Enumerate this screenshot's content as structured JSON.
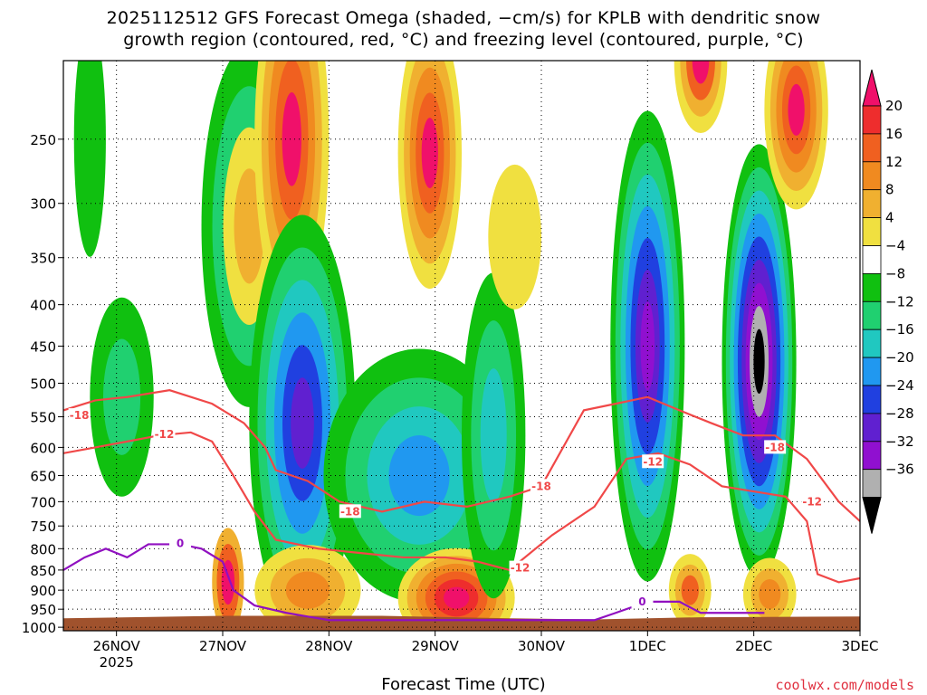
{
  "chart_data": {
    "type": "heatmap",
    "title": "2025112512 GFS Forecast Omega (shaded, −cm/s) for KPLB with dendritic snow",
    "subtitle": "growth region (contoured, red, °C) and freezing level (contoured, purple, °C)",
    "xlabel": "Forecast Time (UTC)",
    "x_ticks": [
      {
        "label": "26NOV",
        "sub": "2025",
        "t": 0.5
      },
      {
        "label": "27NOV",
        "sub": "",
        "t": 1.5
      },
      {
        "label": "28NOV",
        "sub": "",
        "t": 2.5
      },
      {
        "label": "29NOV",
        "sub": "",
        "t": 3.5
      },
      {
        "label": "30NOV",
        "sub": "",
        "t": 4.5
      },
      {
        "label": "1DEC",
        "sub": "",
        "t": 5.5
      },
      {
        "label": "2DEC",
        "sub": "",
        "t": 6.5
      },
      {
        "label": "3DEC",
        "sub": "",
        "t": 7.5
      }
    ],
    "y_ticks": [
      "250",
      "300",
      "350",
      "400",
      "450",
      "500",
      "550",
      "600",
      "650",
      "700",
      "750",
      "800",
      "850",
      "900",
      "950",
      "1000"
    ],
    "y_values": [
      250,
      300,
      350,
      400,
      450,
      500,
      550,
      600,
      650,
      700,
      750,
      800,
      850,
      900,
      950,
      1000
    ],
    "ylim": [
      200,
      1010
    ],
    "xlim": [
      0,
      7.5
    ],
    "y_scale": "log",
    "grid": true,
    "colorbar": {
      "labels": [
        "20",
        "16",
        "12",
        "8",
        "4",
        "−4",
        "−8",
        "−12",
        "−16",
        "−20",
        "−24",
        "−28",
        "−32",
        "−36"
      ],
      "colors": [
        "#f0106a",
        "#ee2d2d",
        "#f06020",
        "#f08a20",
        "#f0b030",
        "#f0e040",
        "#ffffff",
        "#10c010",
        "#20d070",
        "#20c8c0",
        "#2098f0",
        "#2040e0",
        "#6020d0",
        "#9010d0",
        "#b0b0b0",
        "#000000"
      ]
    },
    "contour_labels": {
      "dgz": [
        "-18",
        "-12"
      ],
      "freezing": [
        "0"
      ]
    },
    "dgz_minus18": [
      [
        0,
        540
      ],
      [
        0.3,
        525
      ],
      [
        0.6,
        520
      ],
      [
        1.0,
        510
      ],
      [
        1.4,
        530
      ],
      [
        1.7,
        560
      ],
      [
        1.9,
        600
      ],
      [
        2.0,
        640
      ],
      [
        2.3,
        660
      ],
      [
        2.6,
        700
      ],
      [
        3.0,
        720
      ],
      [
        3.4,
        700
      ],
      [
        3.8,
        710
      ],
      [
        4.2,
        690
      ],
      [
        4.5,
        670
      ],
      [
        4.9,
        540
      ],
      [
        5.2,
        530
      ],
      [
        5.5,
        520
      ],
      [
        5.8,
        540
      ],
      [
        6.1,
        560
      ],
      [
        6.4,
        580
      ],
      [
        6.7,
        580
      ],
      [
        7.0,
        620
      ],
      [
        7.3,
        700
      ],
      [
        7.5,
        740
      ]
    ],
    "dgz_minus12": [
      [
        0,
        610
      ],
      [
        0.3,
        600
      ],
      [
        0.6,
        590
      ],
      [
        0.9,
        580
      ],
      [
        1.2,
        575
      ],
      [
        1.4,
        590
      ],
      [
        1.6,
        650
      ],
      [
        1.8,
        720
      ],
      [
        2.0,
        780
      ],
      [
        2.4,
        800
      ],
      [
        2.8,
        810
      ],
      [
        3.2,
        820
      ],
      [
        3.6,
        820
      ],
      [
        3.9,
        830
      ],
      [
        4.2,
        850
      ],
      [
        4.6,
        770
      ],
      [
        5.0,
        710
      ],
      [
        5.3,
        620
      ],
      [
        5.6,
        610
      ],
      [
        5.9,
        630
      ],
      [
        6.2,
        670
      ],
      [
        6.5,
        680
      ],
      [
        6.8,
        690
      ],
      [
        7.0,
        740
      ],
      [
        7.1,
        860
      ],
      [
        7.3,
        880
      ],
      [
        7.5,
        870
      ]
    ],
    "freezing_0": [
      [
        0,
        850
      ],
      [
        0.2,
        820
      ],
      [
        0.4,
        800
      ],
      [
        0.6,
        820
      ],
      [
        0.8,
        790
      ],
      [
        1.1,
        790
      ],
      [
        1.3,
        800
      ],
      [
        1.5,
        830
      ],
      [
        1.6,
        900
      ],
      [
        1.8,
        940
      ],
      [
        2.1,
        960
      ],
      [
        2.3,
        970
      ],
      [
        2.5,
        980
      ],
      [
        5.0,
        980
      ],
      [
        5.2,
        960
      ],
      [
        5.5,
        930
      ],
      [
        5.8,
        930
      ],
      [
        6.0,
        960
      ],
      [
        6.3,
        960
      ],
      [
        6.6,
        960
      ]
    ]
  },
  "credit": "coolwx.com/models"
}
